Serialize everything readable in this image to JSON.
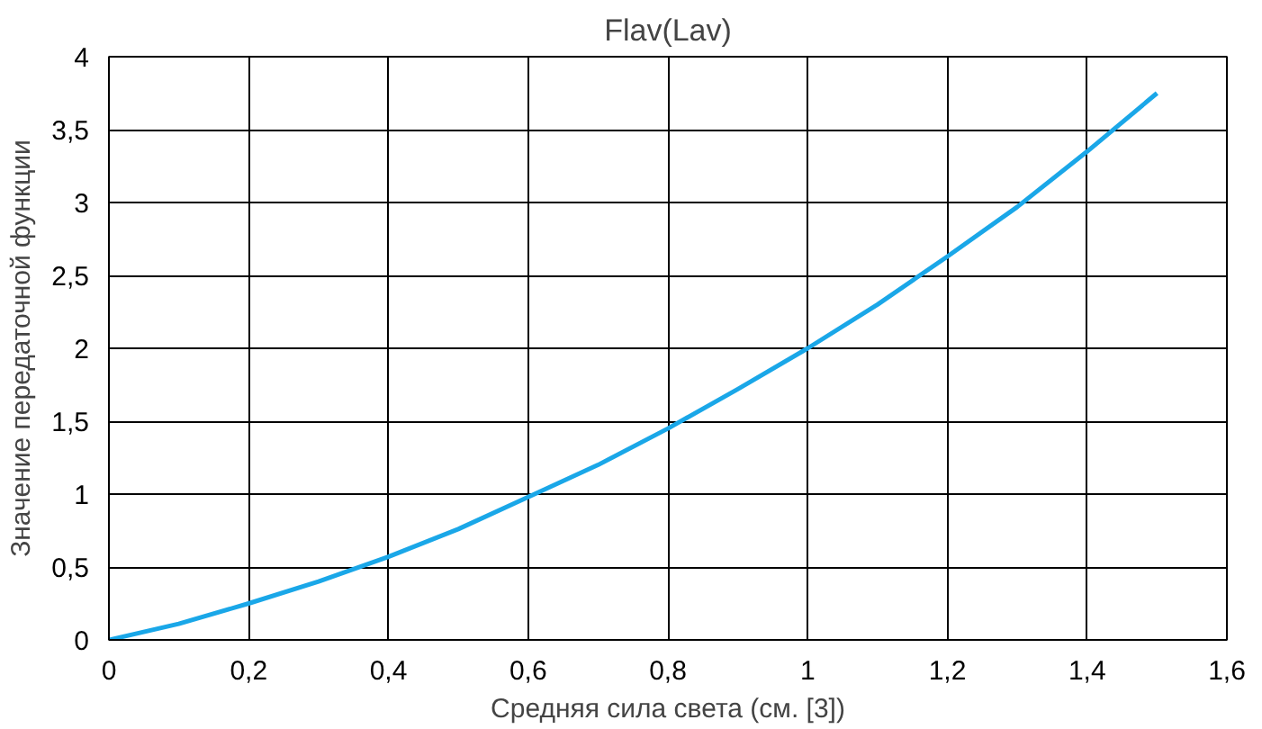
{
  "chart_data": {
    "type": "line",
    "title": "Flav(Lav)",
    "xlabel": "Средняя сила света (см. [3])",
    "ylabel": "Значение передаточной функции",
    "x": [
      0,
      0.1,
      0.2,
      0.3,
      0.4,
      0.5,
      0.6,
      0.7,
      0.8,
      0.9,
      1.0,
      1.1,
      1.2,
      1.3,
      1.4,
      1.5
    ],
    "series": [
      {
        "color": "#1aa7e8",
        "values": [
          0,
          0.11,
          0.25,
          0.4,
          0.57,
          0.76,
          0.98,
          1.2,
          1.45,
          1.72,
          2.0,
          2.3,
          2.63,
          2.97,
          3.35,
          3.75
        ]
      }
    ],
    "xlim": [
      0,
      1.6
    ],
    "ylim": [
      0,
      4
    ],
    "xticks": [
      0,
      {
        "value": 0.2,
        "label": "0,2"
      },
      {
        "value": 0.4,
        "label": "0,4"
      },
      {
        "value": 0.6,
        "label": "0,6"
      },
      {
        "value": 0.8,
        "label": "0,8"
      },
      1,
      {
        "value": 1.2,
        "label": "1,2"
      },
      {
        "value": 1.4,
        "label": "1,4"
      },
      {
        "value": 1.6,
        "label": "1,6"
      }
    ],
    "yticks": [
      0,
      {
        "value": 0.5,
        "label": "0,5"
      },
      1,
      {
        "value": 1.5,
        "label": "1,5"
      },
      2,
      {
        "value": 2.5,
        "label": "2,5"
      },
      3,
      {
        "value": 3.5,
        "label": "3,5"
      },
      4
    ],
    "grid": true,
    "marker": "none",
    "line_style": "solid"
  }
}
